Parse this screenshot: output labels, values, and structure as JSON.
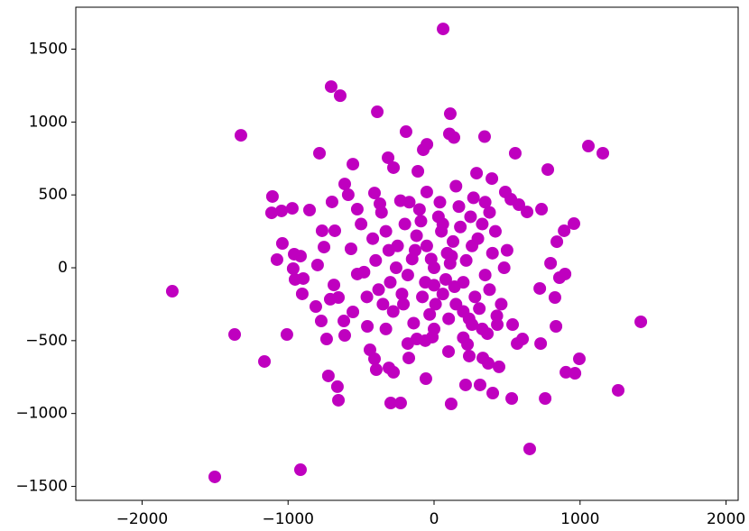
{
  "chart_data": {
    "type": "scatter",
    "x": [
      62,
      -705,
      -643,
      -389,
      -1323,
      111,
      -192,
      105,
      136,
      346,
      1057,
      1156,
      -785,
      556,
      779,
      -556,
      -1107,
      -1113,
      -1045,
      -971,
      -853,
      -1039,
      -1076,
      -958,
      -915,
      -965,
      -952,
      -896,
      -903,
      -1793,
      -810,
      -1366,
      -1008,
      -1162,
      -736,
      -724,
      -662,
      -655,
      -915,
      -1502,
      -297,
      -229,
      -56,
      117,
      216,
      315,
      402,
      532,
      761,
      655,
      903,
      965,
      995,
      1261,
      1416,
      958,
      891,
      841,
      798,
      897,
      859,
      828,
      835,
      730,
      569,
      606,
      538,
      736,
      724,
      637,
      581,
      488,
      526,
      396,
      291,
      -111,
      -278,
      -315,
      -74,
      -49,
      -408,
      -371,
      -612,
      -588,
      -699,
      -526,
      -680,
      -767,
      -754,
      -569,
      -798,
      -526,
      -686,
      -711,
      -655,
      -773,
      -556,
      -618,
      -612,
      -457,
      -439,
      -408,
      -396,
      -309,
      -278,
      -173,
      -118,
      -12,
      99,
      241,
      334,
      371,
      445,
      229,
      365,
      260,
      433,
      0,
      120,
      -150,
      200,
      -80,
      50,
      -250,
      300,
      -300,
      150,
      -200,
      250,
      -100,
      100,
      -350,
      350,
      -50,
      80,
      -180,
      220,
      30,
      -280,
      180,
      -120,
      400,
      -400,
      60,
      -30,
      280,
      -220,
      130,
      -60,
      330,
      -330,
      10,
      170,
      -170,
      380,
      -380,
      90,
      -140,
      240,
      -260,
      260,
      0,
      -90,
      110,
      -20,
      420,
      -420,
      200,
      -210,
      60,
      -310,
      310,
      140,
      -130,
      460,
      -460,
      40,
      350,
      -50,
      150,
      270,
      -230,
      480,
      -480,
      330,
      -330,
      0,
      430,
      -60,
      200,
      -180,
      500,
      -500,
      380,
      -360
    ],
    "values": [
      1639,
      1243,
      1181,
      1070,
      909,
      1057,
      934,
      919,
      894,
      900,
      835,
      786,
      786,
      786,
      674,
      711,
      489,
      377,
      390,
      408,
      396,
      167,
      56,
      93,
      80,
      -6,
      -80,
      -74,
      -179,
      -161,
      -266,
      -458,
      -458,
      -643,
      -489,
      -742,
      -816,
      -909,
      -1386,
      -1435,
      -928,
      -928,
      -761,
      -934,
      -804,
      -804,
      -860,
      -897,
      -897,
      -1243,
      -717,
      -724,
      -625,
      -841,
      -371,
      303,
      254,
      179,
      31,
      -43,
      -68,
      -204,
      -402,
      -520,
      -520,
      -489,
      -390,
      402,
      -142,
      383,
      433,
      520,
      470,
      612,
      649,
      662,
      687,
      755,
      810,
      847,
      513,
      439,
      575,
      501,
      452,
      402,
      254,
      254,
      142,
      130,
      19,
      -43,
      -118,
      -216,
      -204,
      -365,
      -303,
      -365,
      -464,
      -402,
      -563,
      -625,
      -699,
      -687,
      -717,
      -619,
      -489,
      -476,
      -575,
      -606,
      -619,
      -656,
      -680,
      -526,
      -452,
      -390,
      -390,
      0,
      80,
      60,
      -100,
      -200,
      250,
      150,
      200,
      -100,
      -250,
      300,
      350,
      400,
      -350,
      -250,
      -50,
      150,
      -80,
      -50,
      50,
      350,
      -300,
      280,
      220,
      100,
      50,
      -180,
      -320,
      -200,
      -180,
      180,
      -100,
      300,
      250,
      -250,
      420,
      450,
      -150,
      -150,
      100,
      -380,
      -350,
      0,
      150,
      -120,
      320,
      30,
      60,
      250,
      200,
      -300,
      -250,
      300,
      120,
      -280,
      -130,
      120,
      -250,
      -200,
      450,
      450,
      520,
      560,
      480,
      460,
      0,
      -30,
      -420,
      -420,
      -420,
      -330,
      -500,
      -480,
      -520,
      120,
      300,
      380,
      380
    ],
    "color": "#bf00bf",
    "xlim": [
      -2454,
      2083
    ],
    "ylim": [
      -1596,
      1788
    ],
    "xticks": [
      {
        "value": -2000,
        "label": "−2000"
      },
      {
        "value": -1000,
        "label": "−1000"
      },
      0,
      1000,
      2000
    ],
    "yticks": [
      {
        "value": -1500,
        "label": "−1500"
      },
      {
        "value": -1000,
        "label": "−1000"
      },
      {
        "value": -500,
        "label": "−500"
      },
      0,
      500,
      1000,
      1500
    ]
  }
}
